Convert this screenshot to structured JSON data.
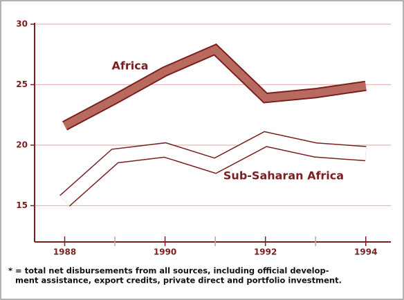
{
  "chart_data": {
    "type": "line",
    "x": [
      1988,
      1989,
      1990,
      1991,
      1992,
      1993,
      1994
    ],
    "series": [
      {
        "name": "Africa",
        "color": "#b86a5e",
        "values": [
          21.6,
          23.8,
          26.1,
          27.9,
          23.9,
          24.3,
          24.9
        ]
      },
      {
        "name": "Sub-Saharan Africa",
        "color": "#ffffff",
        "values": [
          15.4,
          19.1,
          19.6,
          18.3,
          20.5,
          19.6,
          19.3
        ]
      }
    ],
    "xlim": [
      1987.4,
      1994.5
    ],
    "xticks": [
      1988,
      1990,
      1992,
      1994
    ],
    "xminor_ticks": [
      1989,
      1991,
      1993
    ],
    "ylim": [
      12,
      30
    ],
    "yticks": [
      15,
      20,
      25,
      30
    ],
    "grid": true,
    "footnote": [
      "* = total net disbursements from all sources, including official develop-",
      "ment assistance, export credits, private direct and portfolio investment."
    ]
  }
}
